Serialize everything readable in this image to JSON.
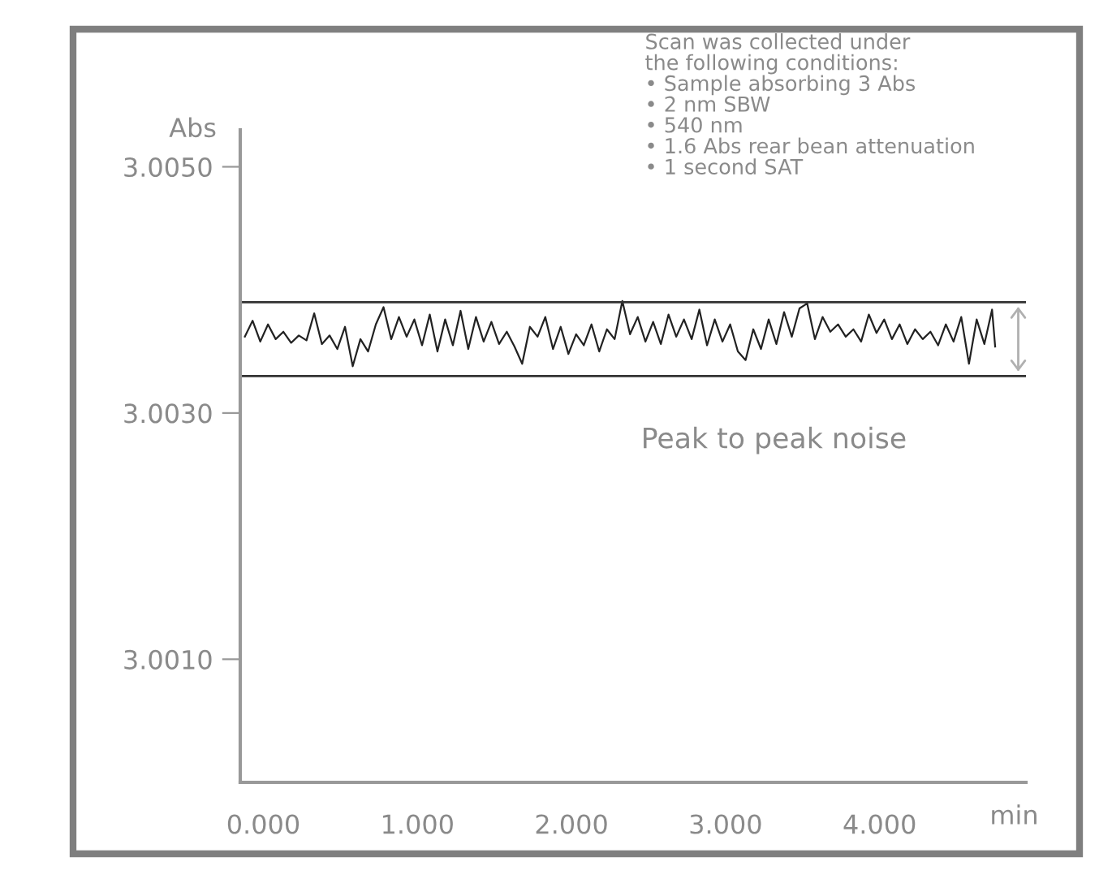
{
  "chart_data": {
    "type": "line",
    "ylabel": "Abs",
    "xlabel": "min",
    "xlim": [
      -0.15,
      4.95
    ],
    "ylim": [
      3.0,
      3.0053
    ],
    "xticks": [
      {
        "value": 0,
        "label": "0.000"
      },
      {
        "value": 1,
        "label": "1.000"
      },
      {
        "value": 2,
        "label": "2.000"
      },
      {
        "value": 3,
        "label": "3.000"
      },
      {
        "value": 4,
        "label": "4.000"
      }
    ],
    "yticks": [
      {
        "value": 3.001,
        "label": "3.0010"
      },
      {
        "value": 3.003,
        "label": "3.0030"
      },
      {
        "value": 3.005,
        "label": "3.0050"
      }
    ],
    "grid": false,
    "legend": false,
    "marker": "none",
    "line_style": "solid",
    "series": [
      {
        "color": "#222222",
        "x": [
          -0.12,
          -0.07,
          -0.02,
          0.03,
          0.08,
          0.13,
          0.18,
          0.23,
          0.28,
          0.33,
          0.38,
          0.43,
          0.48,
          0.53,
          0.58,
          0.63,
          0.68,
          0.73,
          0.78,
          0.83,
          0.88,
          0.93,
          0.98,
          1.03,
          1.08,
          1.13,
          1.18,
          1.23,
          1.28,
          1.33,
          1.38,
          1.43,
          1.48,
          1.53,
          1.58,
          1.63,
          1.68,
          1.73,
          1.78,
          1.83,
          1.88,
          1.93,
          1.98,
          2.03,
          2.08,
          2.13,
          2.18,
          2.23,
          2.28,
          2.33,
          2.38,
          2.43,
          2.48,
          2.53,
          2.58,
          2.63,
          2.68,
          2.73,
          2.78,
          2.83,
          2.88,
          2.93,
          2.98,
          3.03,
          3.08,
          3.13,
          3.18,
          3.23,
          3.28,
          3.33,
          3.38,
          3.43,
          3.48,
          3.53,
          3.58,
          3.63,
          3.68,
          3.73,
          3.78,
          3.83,
          3.88,
          3.93,
          3.98,
          4.03,
          4.08,
          4.13,
          4.18,
          4.23,
          4.28,
          4.33,
          4.38,
          4.43,
          4.48,
          4.53,
          4.58,
          4.63,
          4.68,
          4.73,
          4.75
        ],
        "values": [
          3.00362,
          3.00375,
          3.00358,
          3.00372,
          3.0036,
          3.00366,
          3.00357,
          3.00363,
          3.00359,
          3.00381,
          3.00356,
          3.00363,
          3.00352,
          3.0037,
          3.00338,
          3.0036,
          3.0035,
          3.00372,
          3.00386,
          3.0036,
          3.00378,
          3.00362,
          3.00376,
          3.00355,
          3.0038,
          3.0035,
          3.00376,
          3.00355,
          3.00383,
          3.00352,
          3.00378,
          3.00358,
          3.00374,
          3.00356,
          3.00366,
          3.00354,
          3.0034,
          3.0037,
          3.00362,
          3.00378,
          3.00352,
          3.0037,
          3.00348,
          3.00364,
          3.00355,
          3.00372,
          3.0035,
          3.00368,
          3.0036,
          3.00391,
          3.00364,
          3.00378,
          3.00358,
          3.00374,
          3.00356,
          3.0038,
          3.00362,
          3.00376,
          3.0036,
          3.00384,
          3.00355,
          3.00376,
          3.00358,
          3.00372,
          3.0035,
          3.00343,
          3.00368,
          3.00352,
          3.00376,
          3.00356,
          3.00382,
          3.00362,
          3.00385,
          3.00389,
          3.0036,
          3.00378,
          3.00366,
          3.00372,
          3.00362,
          3.00368,
          3.00358,
          3.0038,
          3.00365,
          3.00376,
          3.0036,
          3.00372,
          3.00356,
          3.00368,
          3.0036,
          3.00366,
          3.00355,
          3.00372,
          3.00358,
          3.00378,
          3.0034,
          3.00376,
          3.00356,
          3.00384,
          3.00354
        ]
      }
    ],
    "ref_lines": [
      {
        "axis": "y",
        "value": 3.0039,
        "color": "#333333",
        "line_style": "solid"
      },
      {
        "axis": "y",
        "value": 3.0033,
        "color": "#333333",
        "line_style": "solid"
      }
    ],
    "annotations": [
      "Scan was collected under\nthe following conditions:\n• Sample absorbing 3 Abs\n• 2 nm SBW\n• 540 nm\n• 1.6 Abs rear bean attenuation\n• 1 second SAT",
      "Peak to peak noise"
    ]
  }
}
